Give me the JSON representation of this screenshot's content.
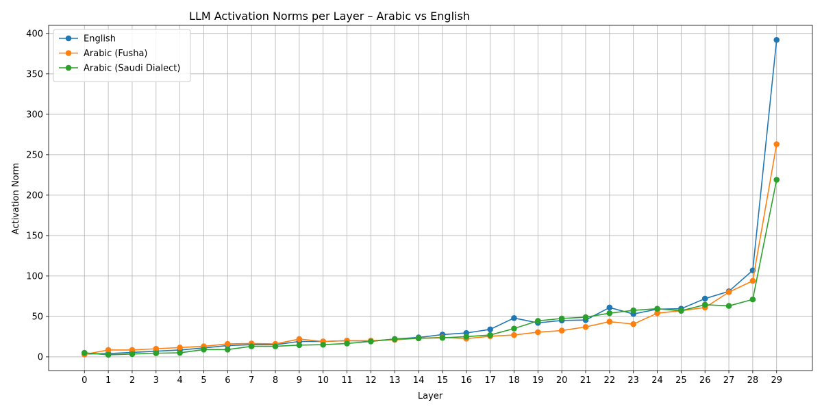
{
  "chart_data": {
    "type": "line",
    "title": "LLM Activation Norms per Layer – Arabic vs English",
    "xlabel": "Layer",
    "ylabel": "Activation Norm",
    "x": [
      0,
      1,
      2,
      3,
      4,
      5,
      6,
      7,
      8,
      9,
      10,
      11,
      12,
      13,
      14,
      15,
      16,
      17,
      18,
      19,
      20,
      21,
      22,
      23,
      24,
      25,
      26,
      27,
      28,
      29
    ],
    "xlim": [
      -1.5,
      30.5
    ],
    "ylim": [
      -17,
      410
    ],
    "yticks": [
      0,
      50,
      100,
      150,
      200,
      250,
      300,
      350,
      400
    ],
    "grid": true,
    "legend": "top-left",
    "series": [
      {
        "name": "English",
        "color": "#1f77b4",
        "values": [
          3.5,
          4,
          5.5,
          7,
          8.5,
          11,
          14,
          15,
          15,
          19,
          19,
          20,
          19.5,
          22,
          24,
          27.5,
          29.5,
          34,
          48,
          42,
          45,
          45.5,
          61,
          53,
          59,
          59.5,
          72,
          81,
          107,
          392
        ]
      },
      {
        "name": "Arabic (Fusha)",
        "color": "#ff7f0e",
        "values": [
          3,
          8.5,
          8.5,
          10,
          11.5,
          13,
          16,
          16.5,
          16,
          22,
          19,
          20,
          20,
          21,
          23,
          24,
          22.5,
          25.5,
          27,
          30.5,
          32.5,
          37,
          43.5,
          40.5,
          54,
          57,
          61,
          80,
          94,
          263
        ]
      },
      {
        "name": "Arabic (Saudi Dialect)",
        "color": "#2ca02c",
        "values": [
          5,
          2.5,
          3.5,
          4.5,
          5,
          9,
          9,
          13,
          13,
          14.5,
          15,
          16.5,
          19,
          22,
          23,
          23.5,
          25,
          27,
          35,
          44.5,
          47.5,
          49,
          54,
          57.5,
          59.5,
          57,
          64.5,
          63,
          71,
          219
        ]
      }
    ]
  }
}
